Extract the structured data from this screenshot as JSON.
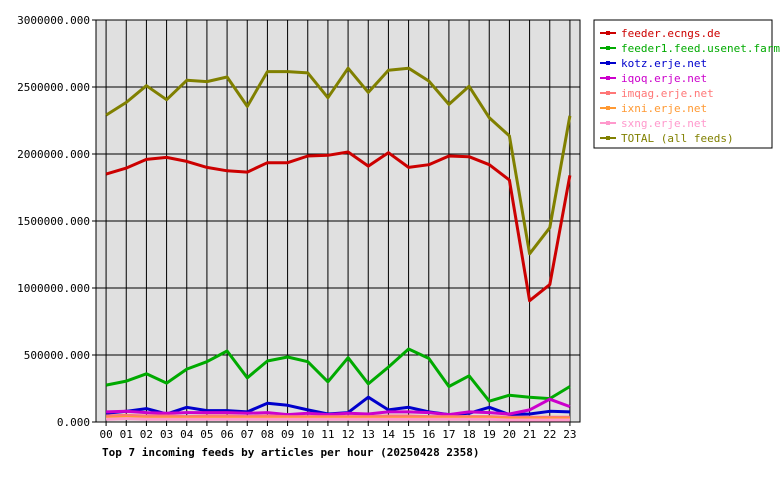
{
  "chart_data": {
    "type": "line",
    "caption": "Top 7 incoming feeds by articles per hour (20250428 2358)",
    "x": [
      "00",
      "01",
      "02",
      "03",
      "04",
      "05",
      "06",
      "07",
      "08",
      "09",
      "10",
      "11",
      "12",
      "13",
      "14",
      "15",
      "16",
      "17",
      "18",
      "19",
      "20",
      "21",
      "22",
      "23"
    ],
    "ylim": [
      0,
      3000000
    ],
    "y_ticks": [
      {
        "value": 0,
        "label": "0.000"
      },
      {
        "value": 500000,
        "label": "500000.000"
      },
      {
        "value": 1000000,
        "label": "1000000.000"
      },
      {
        "value": 1500000,
        "label": "1500000.000"
      },
      {
        "value": 2000000,
        "label": "2000000.000"
      },
      {
        "value": 2500000,
        "label": "2500000.000"
      },
      {
        "value": 3000000,
        "label": "3000000.000"
      }
    ],
    "grid": true,
    "legend_position": "right",
    "plot_background": "#e0e0e0",
    "series": [
      {
        "name": "feeder.ecngs.de",
        "color": "#cc0000",
        "values": [
          1850000,
          1895000,
          1960000,
          1975000,
          1945000,
          1900000,
          1875000,
          1865000,
          1935000,
          1935000,
          1985000,
          1990000,
          2015000,
          1910000,
          2010000,
          1900000,
          1920000,
          1985000,
          1980000,
          1920000,
          1805000,
          905000,
          1025000,
          1840000
        ]
      },
      {
        "name": "feeder1.feed.usenet.farm",
        "color": "#00aa00",
        "values": [
          275000,
          305000,
          360000,
          290000,
          395000,
          450000,
          530000,
          330000,
          455000,
          485000,
          450000,
          300000,
          480000,
          285000,
          410000,
          545000,
          475000,
          265000,
          345000,
          155000,
          200000,
          185000,
          175000,
          265000
        ]
      },
      {
        "name": "kotz.erje.net",
        "color": "#0000cc",
        "values": [
          65000,
          80000,
          100000,
          60000,
          110000,
          85000,
          85000,
          75000,
          140000,
          125000,
          90000,
          60000,
          70000,
          185000,
          90000,
          110000,
          75000,
          55000,
          65000,
          110000,
          55000,
          60000,
          80000,
          75000
        ]
      },
      {
        "name": "iqoq.erje.net",
        "color": "#cc00cc",
        "values": [
          75000,
          80000,
          70000,
          65000,
          70000,
          70000,
          70000,
          65000,
          70000,
          55000,
          65000,
          55000,
          65000,
          60000,
          75000,
          75000,
          70000,
          55000,
          75000,
          70000,
          60000,
          90000,
          170000,
          115000
        ]
      },
      {
        "name": "imqag.erje.net",
        "color": "#ff7777",
        "values": [
          45000,
          50000,
          45000,
          45000,
          40000,
          45000,
          45000,
          40000,
          45000,
          40000,
          40000,
          40000,
          40000,
          40000,
          45000,
          45000,
          40000,
          40000,
          40000,
          40000,
          35000,
          35000,
          35000,
          35000
        ]
      },
      {
        "name": "ixni.erje.net",
        "color": "#ff9933",
        "values": [
          30000,
          35000,
          30000,
          30000,
          30000,
          30000,
          30000,
          30000,
          30000,
          30000,
          30000,
          30000,
          30000,
          30000,
          30000,
          30000,
          30000,
          30000,
          30000,
          30000,
          25000,
          25000,
          25000,
          25000
        ]
      },
      {
        "name": "sxng.erje.net",
        "color": "#ff99cc",
        "values": [
          20000,
          25000,
          20000,
          20000,
          20000,
          20000,
          20000,
          20000,
          20000,
          20000,
          20000,
          20000,
          20000,
          20000,
          20000,
          20000,
          20000,
          20000,
          20000,
          20000,
          15000,
          15000,
          15000,
          15000
        ]
      },
      {
        "name": "TOTAL (all feeds)",
        "color": "#808000",
        "values": [
          2290000,
          2385000,
          2510000,
          2405000,
          2550000,
          2540000,
          2575000,
          2355000,
          2615000,
          2615000,
          2605000,
          2420000,
          2640000,
          2460000,
          2625000,
          2640000,
          2545000,
          2370000,
          2505000,
          2270000,
          2135000,
          1255000,
          1450000,
          2285000
        ]
      }
    ]
  }
}
